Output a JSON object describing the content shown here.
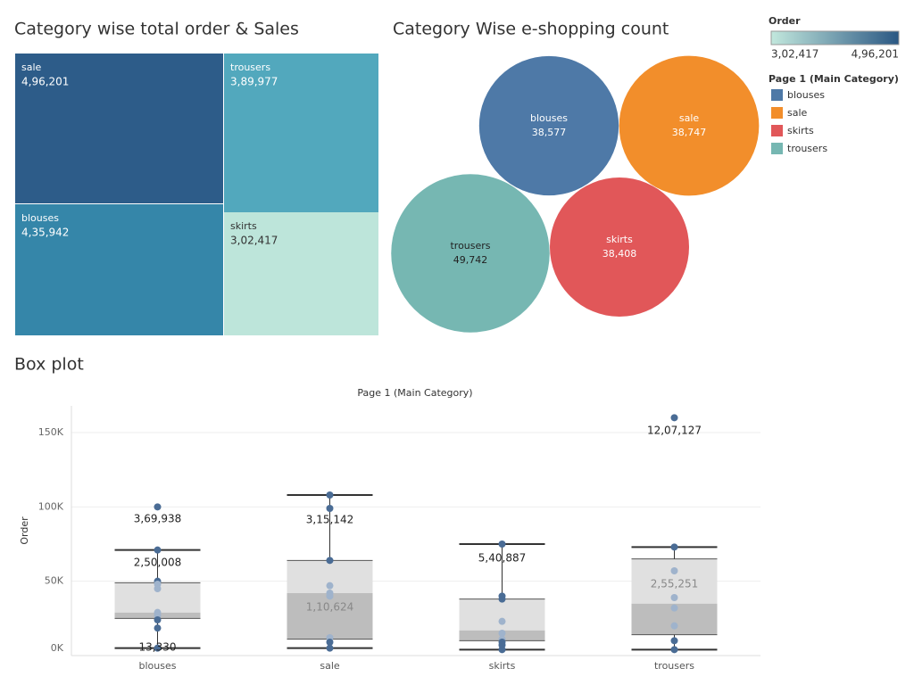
{
  "chart_data": [
    {
      "type": "treemap",
      "title": "Category wise total order & Sales",
      "categories": [
        "sale",
        "trousers",
        "blouses",
        "skirts"
      ],
      "values": [
        496201,
        389977,
        435942,
        302417
      ],
      "value_labels": [
        "4,96,201",
        "3,89,977",
        "4,35,942",
        "3,02,417"
      ],
      "colors": [
        "#2d5c89",
        "#52a8bd",
        "#3586a9",
        "#bde5da"
      ],
      "legend_title": "Order",
      "legend_ticks": [
        {
          "value": 302417,
          "label": "3,02,417"
        },
        {
          "value": 496201,
          "label": "4,96,201"
        }
      ],
      "legend_colors": [
        "#c2e8dd",
        "#2a5783"
      ]
    },
    {
      "type": "bubble",
      "title": "Category Wise e-shopping count",
      "categories": [
        "blouses",
        "sale",
        "skirts",
        "trousers"
      ],
      "values": [
        38577,
        38747,
        38408,
        49742
      ],
      "value_labels": [
        "38,577",
        "38,747",
        "38,408",
        "49,742"
      ],
      "colors": [
        "#4e79a7",
        "#f28e2b",
        "#e15759",
        "#76b7b2"
      ],
      "legend_title": "Page 1 (Main Category)"
    },
    {
      "type": "box",
      "title": "Box plot",
      "x_label": "Page 1 (Main Category)",
      "y_label": "Order",
      "categories": [
        "blouses",
        "sale",
        "skirts",
        "trousers"
      ],
      "ylim": [
        0,
        168000
      ],
      "yticks": [
        {
          "value": 0,
          "label": "0K"
        },
        {
          "value": 50000,
          "label": "50K"
        },
        {
          "value": 100000,
          "label": "100K"
        },
        {
          "value": 150000,
          "label": "150K"
        }
      ],
      "grid": true,
      "box_colors": [
        "#bdbdbd",
        "#e0e0e0"
      ],
      "point_color": "#4a6c95",
      "point_inner_color": "#9fb3cc",
      "boxes": [
        {
          "whisker_low": 5000,
          "q1": 25000,
          "median": 29000,
          "q3": 49000,
          "whisker_high": 71000,
          "points": [
            100000,
            71000,
            50000,
            48000,
            45000,
            29000,
            27000,
            24000,
            18500,
            5000
          ],
          "labels": [
            "3,69,938",
            "2,50,008",
            "13,330"
          ]
        },
        {
          "whisker_low": 5000,
          "q1": 11000,
          "median": 42000,
          "q3": 64000,
          "whisker_high": 108000,
          "points": [
            108000,
            99000,
            64000,
            47000,
            42000,
            40000,
            12000,
            9000,
            5000
          ],
          "labels": [
            "3,15,142",
            "1,10,624"
          ]
        },
        {
          "whisker_low": 4000,
          "q1": 10000,
          "median": 17000,
          "q3": 38000,
          "whisker_high": 75000,
          "points": [
            75000,
            40000,
            38000,
            23000,
            15000,
            11000,
            9000,
            7000,
            4000
          ],
          "labels": [
            "5,40,887"
          ]
        },
        {
          "whisker_low": 4000,
          "q1": 14000,
          "median": 35000,
          "q3": 65000,
          "whisker_high": 73000,
          "points": [
            160000,
            73000,
            57000,
            39000,
            32000,
            20000,
            10000,
            4000
          ],
          "labels": [
            "12,07,127",
            "2,55,251"
          ]
        }
      ]
    }
  ]
}
